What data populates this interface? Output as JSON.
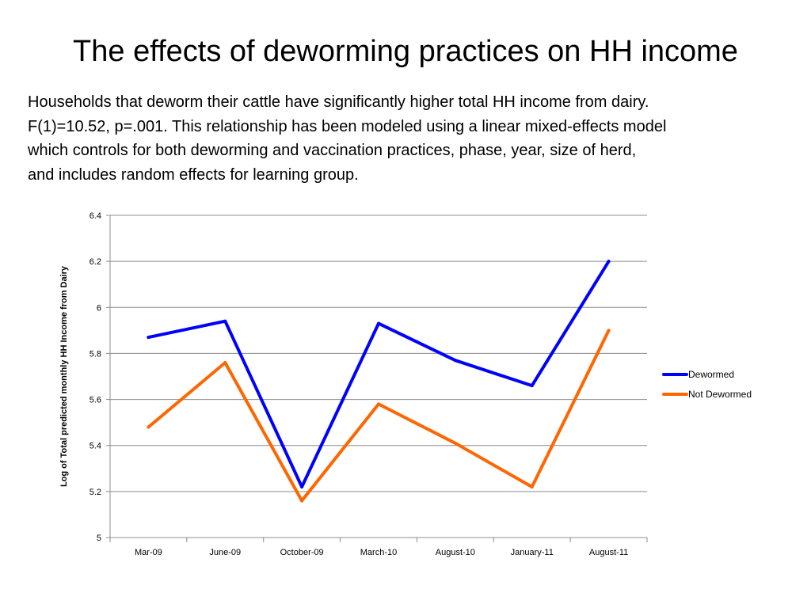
{
  "slide": {
    "title": "The effects of deworming practices on HH income",
    "body_lines": [
      "Households that deworm their cattle have significantly higher total HH income from dairy.",
      "F(1)=10.52, p=.001.  This relationship has been modeled using a linear mixed-effects model",
      "which controls for both deworming and vaccination practices, phase, year, size of herd,",
      "and includes random effects for learning group."
    ]
  },
  "chart_data": {
    "type": "line",
    "title": "",
    "xlabel": "",
    "ylabel": "Log of Total predicted monthly HH Income from Dairy",
    "categories": [
      "Mar-09",
      "June-09",
      "October-09",
      "March-10",
      "August-10",
      "January-11",
      "August-11"
    ],
    "ylim": [
      5,
      6.4
    ],
    "yticks": [
      "5",
      "5.2",
      "5.4",
      "5.6",
      "5.8",
      "6",
      "6.2",
      "6.4"
    ],
    "ytick_values": [
      5,
      5.2,
      5.4,
      5.6,
      5.8,
      6,
      6.2,
      6.4
    ],
    "grid": true,
    "legend_position": "right",
    "series": [
      {
        "name": "Dewormed",
        "color": "#0000ff",
        "values": [
          5.87,
          5.94,
          5.22,
          5.93,
          5.77,
          5.66,
          6.2
        ]
      },
      {
        "name": "Not Dewormed",
        "color": "#ff6600",
        "values": [
          5.48,
          5.76,
          5.16,
          5.58,
          5.41,
          5.22,
          5.9
        ]
      }
    ]
  }
}
